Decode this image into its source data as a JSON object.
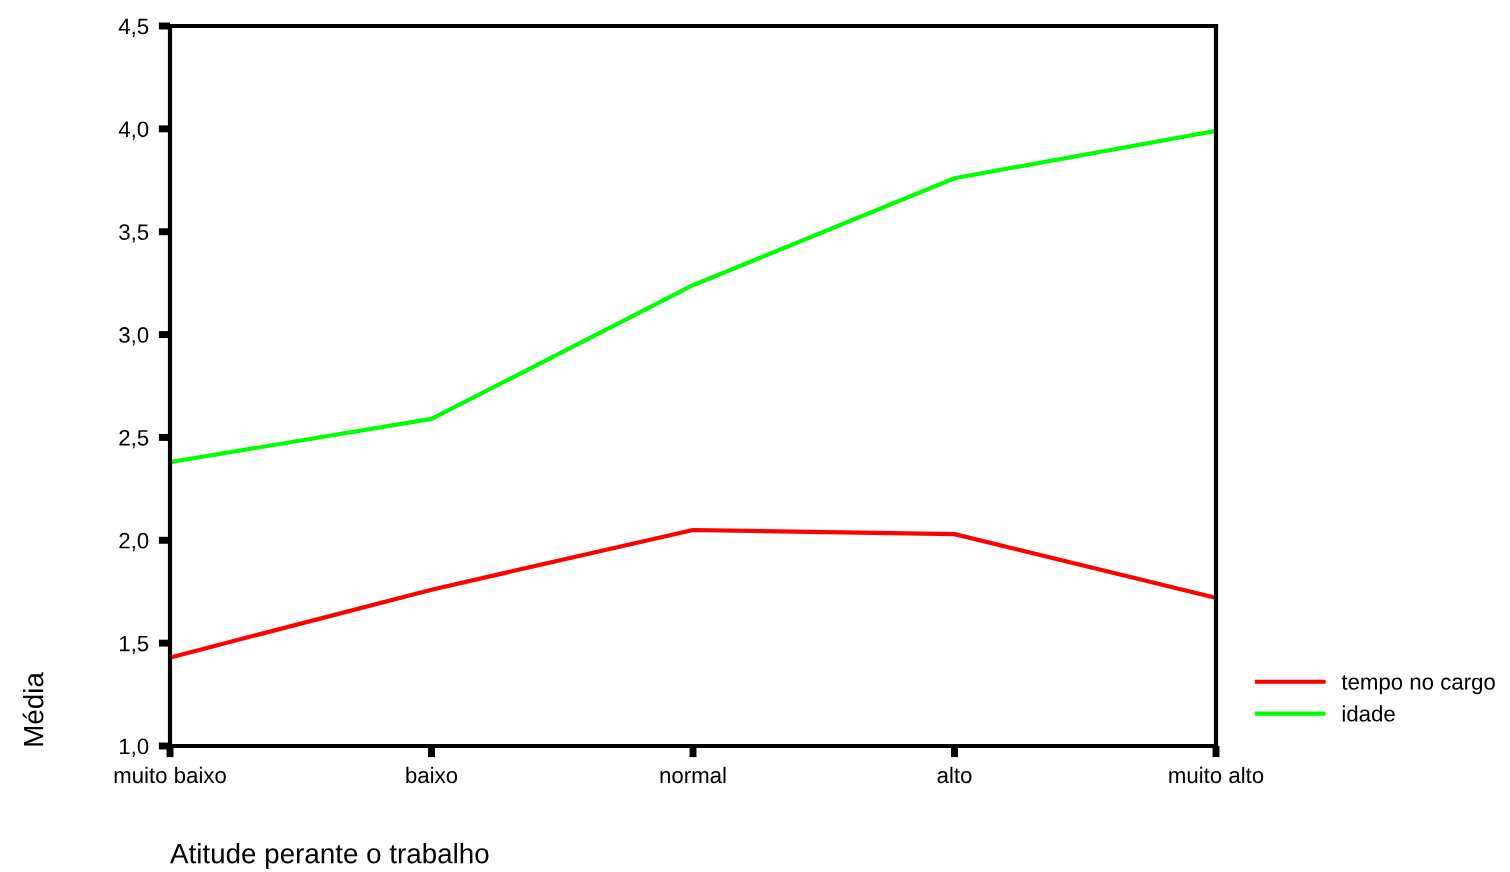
{
  "chart_data": {
    "type": "line",
    "xlabel": "Atitude perante o trabalho",
    "ylabel": "Média",
    "categories": [
      "muito baixo",
      "baixo",
      "normal",
      "alto",
      "muito alto"
    ],
    "series": [
      {
        "name": "tempo no cargo",
        "color": "#ff0000",
        "values": [
          1.43,
          1.76,
          2.05,
          2.03,
          1.72
        ]
      },
      {
        "name": "idade",
        "color": "#00ff00",
        "values": [
          2.38,
          2.59,
          3.24,
          3.76,
          3.99
        ]
      }
    ],
    "ylim": [
      1.0,
      4.5
    ],
    "yticks": [
      {
        "value": 1.0,
        "label": "1,0"
      },
      {
        "value": 1.5,
        "label": "1,5"
      },
      {
        "value": 2.0,
        "label": "2,0"
      },
      {
        "value": 2.5,
        "label": "2,5"
      },
      {
        "value": 3.0,
        "label": "3,0"
      },
      {
        "value": 3.5,
        "label": "3,5"
      },
      {
        "value": 4.0,
        "label": "4,0"
      },
      {
        "value": 4.5,
        "label": "4,5"
      }
    ],
    "grid": false,
    "legend": "right",
    "marker": "none",
    "line_style": "solid"
  }
}
